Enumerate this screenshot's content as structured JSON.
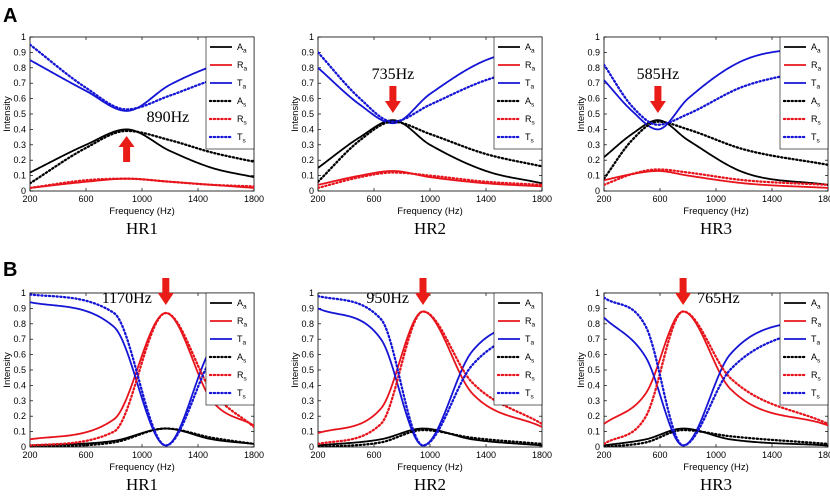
{
  "figure": {
    "panel_labels": [
      "A",
      "B"
    ]
  },
  "colors": {
    "absorption": "#000000",
    "reflection": "#e8141c",
    "transmission": "#1515d6",
    "arrow": "#ea1c17"
  },
  "chart_data": [
    {
      "type": "line",
      "panel": "A",
      "title": "HR1",
      "xlabel": "Frequency (Hz)",
      "ylabel": "Intensity",
      "xlim": [
        200,
        1800
      ],
      "ylim": [
        0,
        1
      ],
      "xticks": [
        200,
        600,
        1000,
        1400,
        1800
      ],
      "yticks": [
        0,
        0.1,
        0.2,
        0.3,
        0.4,
        0.5,
        0.6,
        0.7,
        0.8,
        0.9,
        1
      ],
      "legend": [
        "Aa",
        "Ra",
        "Ta",
        "As",
        "Rs",
        "Ts"
      ],
      "annotation": "890Hz",
      "arrow_direction": "up",
      "resonance_hz": 890,
      "series": [
        {
          "name": "Aa",
          "x": [
            200,
            600,
            890,
            1200,
            1500,
            1800
          ],
          "values": [
            0.12,
            0.3,
            0.4,
            0.26,
            0.15,
            0.09
          ]
        },
        {
          "name": "Ra",
          "x": [
            200,
            600,
            890,
            1200,
            1500,
            1800
          ],
          "values": [
            0.02,
            0.06,
            0.08,
            0.06,
            0.04,
            0.02
          ]
        },
        {
          "name": "Ta",
          "x": [
            200,
            600,
            890,
            1200,
            1500,
            1800
          ],
          "values": [
            0.85,
            0.65,
            0.52,
            0.69,
            0.81,
            0.89
          ]
        },
        {
          "name": "As",
          "x": [
            200,
            600,
            890,
            1200,
            1500,
            1800
          ],
          "values": [
            0.05,
            0.28,
            0.39,
            0.33,
            0.25,
            0.19
          ]
        },
        {
          "name": "Rs",
          "x": [
            200,
            600,
            890,
            1200,
            1500,
            1800
          ],
          "values": [
            0.02,
            0.07,
            0.08,
            0.06,
            0.04,
            0.03
          ]
        },
        {
          "name": "Ts",
          "x": [
            200,
            600,
            890,
            1200,
            1500,
            1800
          ],
          "values": [
            0.95,
            0.67,
            0.53,
            0.62,
            0.72,
            0.79
          ]
        }
      ]
    },
    {
      "type": "line",
      "panel": "A",
      "title": "HR2",
      "xlabel": "Frequency (Hz)",
      "ylabel": "Intensity",
      "xlim": [
        200,
        1800
      ],
      "ylim": [
        0,
        1
      ],
      "xticks": [
        200,
        600,
        1000,
        1400,
        1800
      ],
      "yticks": [
        0,
        0.1,
        0.2,
        0.3,
        0.4,
        0.5,
        0.6,
        0.7,
        0.8,
        0.9,
        1
      ],
      "legend": [
        "Aa",
        "Ra",
        "Ta",
        "As",
        "Rs",
        "Ts"
      ],
      "annotation": "735Hz",
      "arrow_direction": "down",
      "resonance_hz": 735,
      "series": [
        {
          "name": "Aa",
          "x": [
            200,
            500,
            735,
            1000,
            1400,
            1800
          ],
          "values": [
            0.15,
            0.35,
            0.46,
            0.3,
            0.13,
            0.05
          ]
        },
        {
          "name": "Ra",
          "x": [
            200,
            500,
            735,
            1000,
            1400,
            1800
          ],
          "values": [
            0.04,
            0.1,
            0.13,
            0.09,
            0.05,
            0.03
          ]
        },
        {
          "name": "Ta",
          "x": [
            200,
            500,
            735,
            1000,
            1400,
            1800
          ],
          "values": [
            0.8,
            0.56,
            0.44,
            0.63,
            0.85,
            0.93
          ]
        },
        {
          "name": "As",
          "x": [
            200,
            500,
            735,
            1000,
            1400,
            1800
          ],
          "values": [
            0.06,
            0.33,
            0.45,
            0.37,
            0.24,
            0.16
          ]
        },
        {
          "name": "Rs",
          "x": [
            200,
            500,
            735,
            1000,
            1400,
            1800
          ],
          "values": [
            0.02,
            0.09,
            0.12,
            0.1,
            0.06,
            0.04
          ]
        },
        {
          "name": "Ts",
          "x": [
            200,
            500,
            735,
            1000,
            1400,
            1800
          ],
          "values": [
            0.9,
            0.6,
            0.45,
            0.56,
            0.72,
            0.81
          ]
        }
      ]
    },
    {
      "type": "line",
      "panel": "A",
      "title": "HR3",
      "xlabel": "Frequency (Hz)",
      "ylabel": "Intensity",
      "xlim": [
        200,
        1800
      ],
      "ylim": [
        0,
        1
      ],
      "xticks": [
        200,
        600,
        1000,
        1400,
        1800
      ],
      "yticks": [
        0,
        0.1,
        0.2,
        0.3,
        0.4,
        0.5,
        0.6,
        0.7,
        0.8,
        0.9,
        1
      ],
      "legend": [
        "Aa",
        "Ra",
        "Ta",
        "As",
        "Rs",
        "Ts"
      ],
      "annotation": "585Hz",
      "arrow_direction": "down",
      "resonance_hz": 585,
      "series": [
        {
          "name": "Aa",
          "x": [
            200,
            400,
            585,
            800,
            1200,
            1800
          ],
          "values": [
            0.22,
            0.37,
            0.46,
            0.33,
            0.12,
            0.04
          ]
        },
        {
          "name": "Ra",
          "x": [
            200,
            400,
            585,
            800,
            1200,
            1800
          ],
          "values": [
            0.07,
            0.11,
            0.13,
            0.1,
            0.05,
            0.02
          ]
        },
        {
          "name": "Ta",
          "x": [
            200,
            400,
            585,
            800,
            1200,
            1800
          ],
          "values": [
            0.72,
            0.52,
            0.4,
            0.6,
            0.85,
            0.94
          ]
        },
        {
          "name": "As",
          "x": [
            200,
            400,
            585,
            800,
            1200,
            1800
          ],
          "values": [
            0.08,
            0.33,
            0.45,
            0.4,
            0.27,
            0.17
          ]
        },
        {
          "name": "Rs",
          "x": [
            200,
            400,
            585,
            800,
            1200,
            1800
          ],
          "values": [
            0.04,
            0.11,
            0.14,
            0.12,
            0.07,
            0.04
          ]
        },
        {
          "name": "Ts",
          "x": [
            200,
            400,
            585,
            800,
            1200,
            1800
          ],
          "values": [
            0.82,
            0.55,
            0.43,
            0.5,
            0.68,
            0.8
          ]
        }
      ]
    },
    {
      "type": "line",
      "panel": "B",
      "title": "HR1",
      "xlabel": "Frequency (Hz)",
      "ylabel": "Intensity",
      "xlim": [
        200,
        1800
      ],
      "ylim": [
        0,
        1
      ],
      "xticks": [
        200,
        600,
        1000,
        1400,
        1800
      ],
      "yticks": [
        0,
        0.1,
        0.2,
        0.3,
        0.4,
        0.5,
        0.6,
        0.7,
        0.8,
        0.9,
        1
      ],
      "legend": [
        "Aa",
        "Ra",
        "Ta",
        "As",
        "Rs",
        "Ts"
      ],
      "annotation": "1170Hz",
      "arrow_direction": "down",
      "resonance_hz": 1170,
      "series": [
        {
          "name": "Aa",
          "x": [
            200,
            800,
            1170,
            1500,
            1800
          ],
          "values": [
            0.01,
            0.04,
            0.12,
            0.05,
            0.02
          ]
        },
        {
          "name": "Ra",
          "x": [
            200,
            800,
            1170,
            1500,
            1800
          ],
          "values": [
            0.05,
            0.18,
            0.87,
            0.3,
            0.14
          ]
        },
        {
          "name": "Ta",
          "x": [
            200,
            800,
            1170,
            1500,
            1800
          ],
          "values": [
            0.94,
            0.78,
            0.01,
            0.65,
            0.85
          ]
        },
        {
          "name": "As",
          "x": [
            200,
            800,
            1170,
            1500,
            1800
          ],
          "values": [
            0.0,
            0.03,
            0.12,
            0.06,
            0.02
          ]
        },
        {
          "name": "Rs",
          "x": [
            200,
            800,
            1170,
            1500,
            1800
          ],
          "values": [
            0.01,
            0.1,
            0.87,
            0.36,
            0.13
          ]
        },
        {
          "name": "Ts",
          "x": [
            200,
            800,
            1170,
            1500,
            1800
          ],
          "values": [
            0.99,
            0.87,
            0.01,
            0.58,
            0.86
          ]
        }
      ]
    },
    {
      "type": "line",
      "panel": "B",
      "title": "HR2",
      "xlabel": "Frequency (Hz)",
      "ylabel": "Intensity",
      "xlim": [
        200,
        1800
      ],
      "ylim": [
        0,
        1
      ],
      "xticks": [
        200,
        600,
        1000,
        1400,
        1800
      ],
      "yticks": [
        0,
        0.1,
        0.2,
        0.3,
        0.4,
        0.5,
        0.6,
        0.7,
        0.8,
        0.9,
        1
      ],
      "legend": [
        "Aa",
        "Ra",
        "Ta",
        "As",
        "Rs",
        "Ts"
      ],
      "annotation": "950Hz",
      "arrow_direction": "down",
      "resonance_hz": 950,
      "series": [
        {
          "name": "Aa",
          "x": [
            200,
            650,
            950,
            1300,
            1800
          ],
          "values": [
            0.01,
            0.05,
            0.12,
            0.05,
            0.01
          ]
        },
        {
          "name": "Ra",
          "x": [
            200,
            650,
            950,
            1300,
            1800
          ],
          "values": [
            0.09,
            0.25,
            0.88,
            0.35,
            0.13
          ]
        },
        {
          "name": "Ta",
          "x": [
            200,
            650,
            950,
            1300,
            1800
          ],
          "values": [
            0.9,
            0.7,
            0.01,
            0.62,
            0.86
          ]
        },
        {
          "name": "As",
          "x": [
            200,
            650,
            950,
            1300,
            1800
          ],
          "values": [
            0.0,
            0.03,
            0.11,
            0.06,
            0.02
          ]
        },
        {
          "name": "Rs",
          "x": [
            200,
            650,
            950,
            1300,
            1800
          ],
          "values": [
            0.02,
            0.15,
            0.88,
            0.42,
            0.15
          ]
        },
        {
          "name": "Ts",
          "x": [
            200,
            650,
            950,
            1300,
            1800
          ],
          "values": [
            0.98,
            0.83,
            0.01,
            0.53,
            0.82
          ]
        }
      ]
    },
    {
      "type": "line",
      "panel": "B",
      "title": "HR3",
      "xlabel": "Frequency (Hz)",
      "ylabel": "Intensity",
      "xlim": [
        200,
        1800
      ],
      "ylim": [
        0,
        1
      ],
      "xticks": [
        200,
        600,
        1000,
        1400,
        1800
      ],
      "yticks": [
        0,
        0.1,
        0.2,
        0.3,
        0.4,
        0.5,
        0.6,
        0.7,
        0.8,
        0.9,
        1
      ],
      "legend": [
        "Aa",
        "Ra",
        "Ta",
        "As",
        "Rs",
        "Ts"
      ],
      "annotation": "765Hz",
      "arrow_direction": "down",
      "resonance_hz": 765,
      "series": [
        {
          "name": "Aa",
          "x": [
            200,
            500,
            765,
            1100,
            1800
          ],
          "values": [
            0.01,
            0.05,
            0.12,
            0.05,
            0.01
          ]
        },
        {
          "name": "Ra",
          "x": [
            200,
            500,
            765,
            1100,
            1800
          ],
          "values": [
            0.15,
            0.35,
            0.88,
            0.38,
            0.14
          ]
        },
        {
          "name": "Ta",
          "x": [
            200,
            500,
            765,
            1100,
            1800
          ],
          "values": [
            0.84,
            0.58,
            0.01,
            0.6,
            0.86
          ]
        },
        {
          "name": "As",
          "x": [
            200,
            500,
            765,
            1100,
            1800
          ],
          "values": [
            0.0,
            0.03,
            0.11,
            0.07,
            0.02
          ]
        },
        {
          "name": "Rs",
          "x": [
            200,
            500,
            765,
            1100,
            1800
          ],
          "values": [
            0.02,
            0.2,
            0.88,
            0.45,
            0.15
          ]
        },
        {
          "name": "Ts",
          "x": [
            200,
            500,
            765,
            1100,
            1800
          ],
          "values": [
            0.97,
            0.78,
            0.01,
            0.5,
            0.82
          ]
        }
      ]
    }
  ]
}
